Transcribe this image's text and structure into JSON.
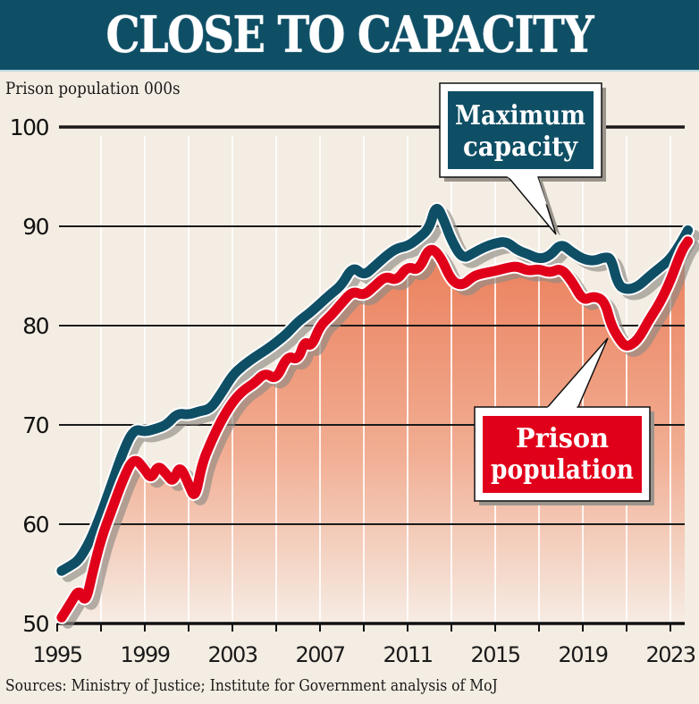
{
  "header": {
    "title": "CLOSE TO CAPACITY"
  },
  "chart_meta": {
    "ylabel_text": "Prison population 000s",
    "source_text": "Sources: Ministry of Justice; Institute for Government analysis of MoJ"
  },
  "colors": {
    "title_bg": "#0f4f66",
    "capacity_line": "#0f4f66",
    "population_line": "#e1001a",
    "fill_top": "#ec8a68",
    "fill_bottom": "#f6e6dc",
    "background": "#f4ede3"
  },
  "callouts": {
    "capacity": {
      "line1": "Maximum",
      "line2": "capacity"
    },
    "population": {
      "line1": "Prison",
      "line2": "population"
    }
  },
  "chart_data": {
    "type": "line",
    "title": "CLOSE TO CAPACITY",
    "xlabel": "",
    "ylabel": "Prison population 000s",
    "xlim": [
      1995,
      2024
    ],
    "ylim": [
      50,
      100
    ],
    "yticks": [
      50,
      60,
      70,
      80,
      90,
      100
    ],
    "ytick_labels": [
      "50",
      "60",
      "70",
      "80",
      "90",
      "100"
    ],
    "xticks_minor": [
      1995,
      1997,
      1999,
      2001,
      2003,
      2005,
      2007,
      2009,
      2011,
      2013,
      2015,
      2017,
      2019,
      2021,
      2023
    ],
    "xtick_labels": [
      "1995",
      "1999",
      "2003",
      "2007",
      "2011",
      "2015",
      "2019",
      "2023"
    ],
    "grid": true,
    "legend": "callout labels",
    "source": "Sources: Ministry of Justice; Institute for Government analysis of MoJ",
    "series": [
      {
        "name": "Maximum capacity",
        "x": [
          1995.2,
          1995.6,
          1996.0,
          1996.5,
          1997.0,
          1997.5,
          1998.0,
          1998.5,
          1999.0,
          1999.5,
          2000.0,
          2000.5,
          2001.0,
          2001.5,
          2002.0,
          2002.5,
          2003.0,
          2003.5,
          2004.0,
          2004.5,
          2005.0,
          2005.5,
          2006.0,
          2006.5,
          2007.0,
          2007.5,
          2008.0,
          2008.5,
          2009.0,
          2009.5,
          2010.0,
          2010.5,
          2011.0,
          2011.5,
          2012.0,
          2012.3,
          2012.7,
          2013.0,
          2013.5,
          2014.0,
          2014.5,
          2015.0,
          2015.5,
          2016.0,
          2016.5,
          2017.0,
          2017.5,
          2018.0,
          2018.5,
          2019.0,
          2019.5,
          2020.0,
          2020.3,
          2020.6,
          2021.0,
          2021.5,
          2022.0,
          2022.5,
          2023.0,
          2023.5,
          2023.8
        ],
        "values": [
          55.3,
          55.8,
          56.4,
          58.3,
          61.0,
          64.1,
          67.3,
          69.6,
          69.3,
          69.6,
          70.0,
          71.2,
          71.0,
          71.4,
          71.6,
          73.2,
          75.0,
          76.0,
          76.8,
          77.5,
          78.3,
          79.2,
          80.4,
          81.2,
          82.2,
          83.2,
          84.1,
          86.0,
          85.0,
          86.0,
          87.0,
          87.8,
          88.0,
          88.8,
          89.8,
          92.3,
          90.4,
          88.6,
          86.7,
          87.3,
          87.9,
          88.3,
          88.5,
          87.6,
          87.2,
          86.7,
          87.0,
          88.3,
          87.4,
          86.7,
          86.5,
          86.9,
          86.8,
          84.1,
          83.6,
          83.9,
          84.9,
          85.8,
          86.7,
          88.4,
          89.6
        ]
      },
      {
        "name": "Prison population",
        "x": [
          1995.2,
          1995.6,
          1996.0,
          1996.3,
          1996.6,
          1997.0,
          1997.5,
          1998.0,
          1998.5,
          1999.0,
          1999.3,
          1999.6,
          2000.0,
          2000.3,
          2000.6,
          2001.0,
          2001.3,
          2001.6,
          2002.0,
          2002.5,
          2003.0,
          2003.5,
          2004.0,
          2004.5,
          2005.0,
          2005.5,
          2006.0,
          2006.3,
          2006.6,
          2007.0,
          2007.5,
          2008.0,
          2008.5,
          2009.0,
          2009.5,
          2010.0,
          2010.5,
          2011.0,
          2011.5,
          2012.0,
          2012.5,
          2013.0,
          2013.5,
          2014.0,
          2014.5,
          2015.0,
          2015.5,
          2016.0,
          2016.5,
          2017.0,
          2017.5,
          2018.0,
          2018.5,
          2019.0,
          2019.5,
          2020.0,
          2020.3,
          2020.7,
          2021.0,
          2021.5,
          2022.0,
          2022.5,
          2023.0,
          2023.5,
          2023.8
        ],
        "values": [
          50.6,
          52.0,
          53.5,
          52.0,
          55.0,
          58.5,
          61.5,
          64.5,
          66.8,
          65.5,
          64.5,
          66.0,
          65.0,
          64.2,
          66.0,
          64.0,
          62.5,
          66.0,
          68.2,
          70.5,
          72.3,
          73.5,
          74.2,
          75.3,
          74.5,
          77.0,
          76.5,
          78.5,
          77.8,
          80.0,
          81.0,
          82.3,
          83.5,
          83.0,
          84.0,
          85.0,
          84.5,
          86.0,
          85.5,
          88.0,
          87.0,
          84.5,
          84.0,
          85.0,
          85.3,
          85.5,
          85.8,
          86.0,
          85.5,
          85.7,
          85.3,
          85.8,
          84.5,
          82.5,
          83.0,
          82.5,
          80.0,
          78.5,
          77.8,
          78.5,
          80.5,
          82.2,
          84.5,
          87.5,
          88.5
        ]
      }
    ]
  }
}
